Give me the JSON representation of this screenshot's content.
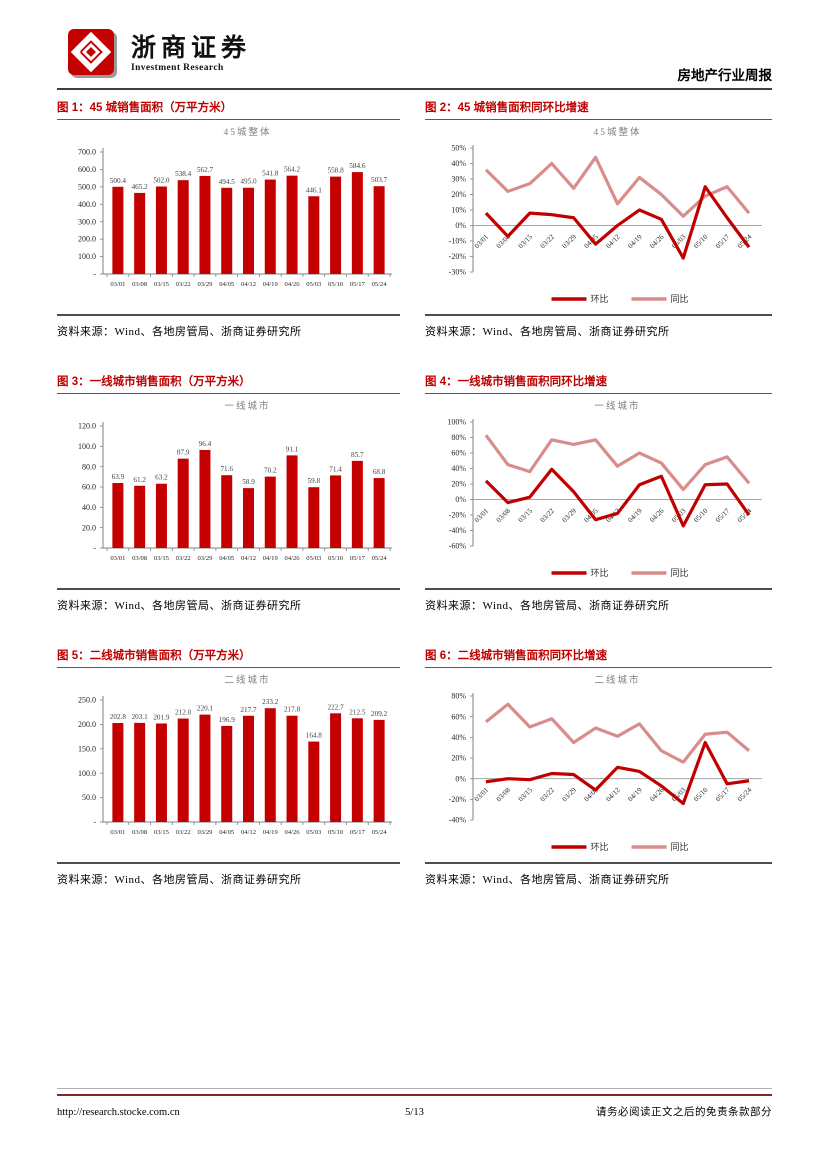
{
  "header": {
    "brand_cn": "浙商证券",
    "brand_en": "Investment Research",
    "report_title": "房地产行业周报"
  },
  "source_label": "资料来源：Wind、各地房管局、浙商证券研究所",
  "colors": {
    "bar": "#c40000",
    "series_huanbi": "#c00000",
    "series_tongbi": "#d98c8c",
    "figure_title": "#c00000",
    "inner_title": "#7f7f7f"
  },
  "figures": [
    {
      "title": "图 1：45 城销售面积（万平方米）"
    },
    {
      "title": "图 2：45 城销售面积同环比增速"
    },
    {
      "title": "图 3：一线城市销售面积（万平方米）"
    },
    {
      "title": "图 4：一线城市销售面积同环比增速"
    },
    {
      "title": "图 5：二线城市销售面积（万平方米）"
    },
    {
      "title": "图 6：二线城市销售面积同环比增速"
    }
  ],
  "chart_data": [
    {
      "type": "bar",
      "title": "45城整体",
      "categories": [
        "03/01",
        "03/08",
        "03/15",
        "03/22",
        "03/29",
        "04/05",
        "04/12",
        "04/19",
        "04/26",
        "05/03",
        "05/10",
        "05/17",
        "05/24"
      ],
      "values": [
        500.4,
        465.2,
        502.0,
        538.4,
        562.7,
        494.5,
        495.0,
        541.8,
        564.2,
        446.1,
        558.8,
        584.6,
        503.7
      ],
      "ylim": [
        0,
        700
      ],
      "ytick_step": 100,
      "grid": false
    },
    {
      "type": "line",
      "title": "45城整体",
      "categories": [
        "03/01",
        "03/08",
        "03/15",
        "03/22",
        "03/29",
        "04/05",
        "04/12",
        "04/19",
        "04/26",
        "05/03",
        "05/10",
        "05/17",
        "05/24"
      ],
      "series": [
        {
          "name": "环比",
          "values": [
            8,
            -7,
            8,
            7,
            5,
            -12,
            0,
            10,
            4,
            -21,
            25,
            5,
            -14
          ]
        },
        {
          "name": "同比",
          "values": [
            36,
            22,
            27,
            40,
            24,
            44,
            14,
            31,
            20,
            6,
            19,
            25,
            8
          ]
        }
      ],
      "ylim": [
        -30,
        50
      ],
      "ytick_step": 10,
      "unit": "%",
      "legend_position": "bottom",
      "grid": false
    },
    {
      "type": "bar",
      "title": "一线城市",
      "categories": [
        "03/01",
        "03/08",
        "03/15",
        "03/22",
        "03/29",
        "04/05",
        "04/12",
        "04/19",
        "04/26",
        "05/03",
        "05/10",
        "05/17",
        "05/24"
      ],
      "values": [
        63.9,
        61.2,
        63.2,
        87.9,
        96.4,
        71.6,
        58.9,
        70.2,
        91.1,
        59.8,
        71.4,
        85.7,
        68.8
      ],
      "ylim": [
        0,
        120
      ],
      "ytick_step": 20,
      "grid": false
    },
    {
      "type": "line",
      "title": "一线城市",
      "categories": [
        "03/01",
        "03/08",
        "03/15",
        "03/22",
        "03/29",
        "04/05",
        "04/12",
        "04/19",
        "04/26",
        "05/03",
        "05/10",
        "05/17",
        "05/24"
      ],
      "series": [
        {
          "name": "环比",
          "values": [
            24,
            -4,
            3,
            39,
            10,
            -26,
            -18,
            19,
            30,
            -34,
            19,
            20,
            -20
          ]
        },
        {
          "name": "同比",
          "values": [
            83,
            45,
            36,
            77,
            71,
            77,
            43,
            60,
            47,
            13,
            45,
            55,
            21
          ]
        }
      ],
      "ylim": [
        -60,
        100
      ],
      "ytick_step": 20,
      "unit": "%",
      "legend_position": "bottom",
      "grid": false
    },
    {
      "type": "bar",
      "title": "二线城市",
      "categories": [
        "03/01",
        "03/08",
        "03/15",
        "03/22",
        "03/29",
        "04/05",
        "04/12",
        "04/19",
        "04/26",
        "05/03",
        "05/10",
        "05/17",
        "05/24"
      ],
      "values": [
        202.8,
        203.1,
        201.9,
        212.0,
        220.1,
        196.9,
        217.7,
        233.2,
        217.8,
        164.8,
        222.7,
        212.5,
        209.2
      ],
      "ylim": [
        0,
        250
      ],
      "ytick_step": 50,
      "grid": false
    },
    {
      "type": "line",
      "title": "二线城市",
      "categories": [
        "03/01",
        "03/08",
        "03/15",
        "03/22",
        "03/29",
        "04/05",
        "04/12",
        "04/19",
        "04/26",
        "05/03",
        "05/10",
        "05/17",
        "05/24"
      ],
      "series": [
        {
          "name": "环比",
          "values": [
            -3,
            0,
            -1,
            5,
            4,
            -11,
            11,
            7,
            -7,
            -24,
            35,
            -5,
            -2
          ]
        },
        {
          "name": "同比",
          "values": [
            55,
            72,
            50,
            58,
            35,
            49,
            41,
            53,
            27,
            16,
            43,
            45,
            27
          ]
        }
      ],
      "ylim": [
        -40,
        80
      ],
      "ytick_step": 20,
      "unit": "%",
      "legend_position": "bottom",
      "grid": false
    }
  ],
  "footer": {
    "url": "http://research.stocke.com.cn",
    "page_number": "5/13",
    "disclaimer": "请务必阅读正文之后的免责条款部分"
  }
}
